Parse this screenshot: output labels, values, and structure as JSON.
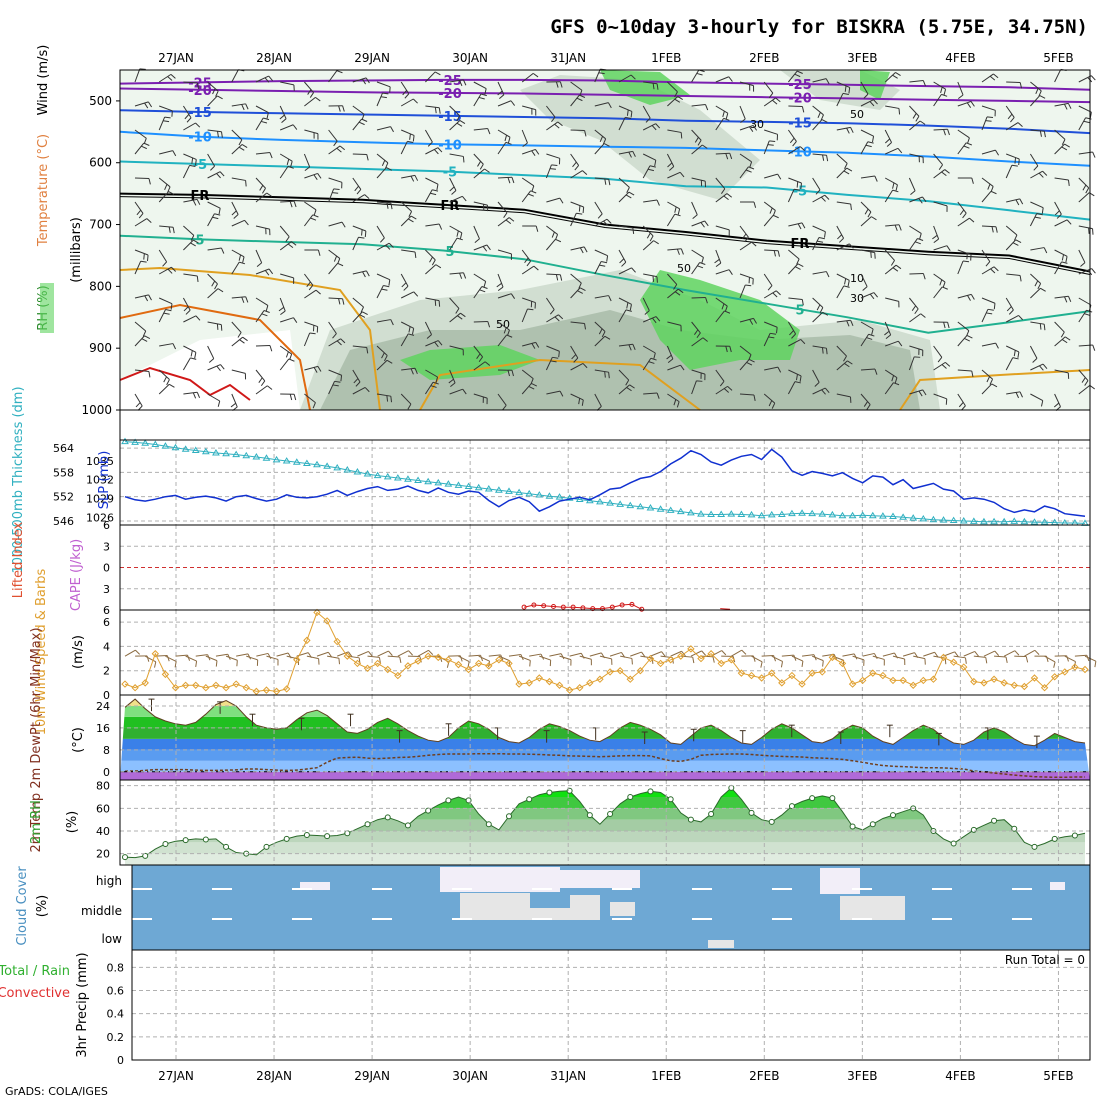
{
  "title": "GFS 0~10day 3-hourly for BISKRA (5.75E, 34.75N)",
  "footer": "GrADS: COLA/IGES",
  "colors": {
    "grid": "#b0b0b0",
    "rh_light": "#e6f2e6",
    "rh_mid": "#cbd9cb",
    "rh_dark": "#a9bca9",
    "rh_green": "#5fd35f",
    "purple": "#7a1fb0",
    "blue": "#1f4fd8",
    "cyan_blue": "#1e90ff",
    "cyan": "#20b2c0",
    "teal": "#20b090",
    "orange": "#e0a020",
    "dark_orange": "#e06a10",
    "red": "#d01818",
    "slp": "#1030d0",
    "thickness": "#30b0c0",
    "wind_speed": "#e0a030",
    "cloud_bg": "#6ea8d4",
    "cloud_white": "#f2eef8",
    "cloud_grey": "#e6e6e6"
  },
  "chart_data": {
    "type": "meteogram",
    "x_axis": {
      "date_labels": [
        "27JAN",
        "28JAN",
        "29JAN",
        "30JAN",
        "31JAN",
        "1FEB",
        "2FEB",
        "3FEB",
        "4FEB",
        "5FEB"
      ],
      "date_day_index": [
        0,
        1,
        2,
        3,
        4,
        5,
        6,
        7,
        8,
        9
      ],
      "range_days": [
        -0.45,
        9.3
      ]
    },
    "upper_air": {
      "ylabel_variables": [
        "RH (%)",
        "Temperature (°C)",
        "Wind (m/s)"
      ],
      "ylabel_unit": "(millibars)",
      "y_ticks": [
        500,
        600,
        700,
        800,
        900,
        1000
      ],
      "ylim": [
        450,
        1000
      ],
      "temperature_contours": [
        {
          "label": "-25",
          "pressure": [
            472,
            470,
            468,
            467,
            466,
            466,
            467,
            470,
            472,
            474,
            476,
            478,
            482
          ]
        },
        {
          "label": "-20",
          "pressure": [
            480,
            482,
            484,
            486,
            487,
            488,
            490,
            492,
            494,
            496,
            498,
            500,
            502
          ]
        },
        {
          "label": "-15",
          "pressure": [
            515,
            518,
            520,
            522,
            524,
            526,
            528,
            532,
            534,
            536,
            540,
            545,
            552
          ]
        },
        {
          "label": "-10",
          "pressure": [
            550,
            558,
            563,
            567,
            570,
            572,
            574,
            576,
            580,
            584,
            590,
            598,
            605
          ]
        },
        {
          "label": "-5",
          "pressure": [
            598,
            602,
            606,
            610,
            614,
            620,
            626,
            638,
            640,
            652,
            662,
            677,
            692
          ]
        },
        {
          "label": "FR",
          "pressure": [
            650,
            652,
            656,
            660,
            668,
            676,
            700,
            712,
            726,
            735,
            744,
            750,
            776
          ]
        },
        {
          "label": "5",
          "pressure": [
            718,
            724,
            728,
            732,
            742,
            756,
            782,
            806,
            828,
            850,
            875,
            858,
            840
          ]
        }
      ],
      "rh_contour_labels": [
        "30",
        "50",
        "50",
        "10",
        "30",
        "50"
      ]
    },
    "slp_thickness": {
      "ylabel_left": "1000-500mb Thickness (dm)",
      "ylabel_right": "SLP (mb)",
      "thickness_ticks": [
        546,
        552,
        558,
        564
      ],
      "slp_ticks": [
        1026,
        1029,
        1032,
        1035
      ],
      "thickness_range": [
        545,
        566
      ],
      "slp_range": [
        1025.6,
        1037.5
      ],
      "slp": [
        1029.3,
        1028.8,
        1028.6,
        1028.9,
        1029.3,
        1029.5,
        1028.9,
        1029.2,
        1029.4,
        1029.1,
        1028.6,
        1029.3,
        1029.5,
        1029.0,
        1028.6,
        1028.9,
        1029.6,
        1029.2,
        1029.1,
        1029.3,
        1029.7,
        1030.3,
        1029.5,
        1030.1,
        1030.6,
        1030.9,
        1030.3,
        1030.5,
        1031.0,
        1030.3,
        1029.9,
        1030.7,
        1030.0,
        1029.7,
        1030.2,
        1030.0,
        1028.7,
        1027.7,
        1028.7,
        1029.2,
        1028.5,
        1027.0,
        1027.7,
        1028.6,
        1028.9,
        1029.2,
        1028.8,
        1029.6,
        1030.5,
        1030.7,
        1031.5,
        1032.2,
        1032.5,
        1033.3,
        1034.5,
        1035.4,
        1036.6,
        1036.0,
        1034.8,
        1034.3,
        1035.1,
        1035.7,
        1036.0,
        1035.2,
        1036.8,
        1035.6,
        1033.4,
        1032.7,
        1033.3,
        1033.0,
        1032.6,
        1033.1,
        1032.2,
        1031.5,
        1032.6,
        1032.4,
        1031.2,
        1032.0,
        1030.6,
        1031.0,
        1031.4,
        1030.5,
        1030.2,
        1028.9,
        1029.1,
        1028.9,
        1028.4,
        1027.4,
        1026.8,
        1027.2,
        1026.9,
        1027.8,
        1027.4,
        1026.6,
        1026.4,
        1026.2
      ],
      "thickness": [
        565.6,
        565.4,
        565.2,
        564.9,
        564.5,
        564.1,
        563.7,
        563.4,
        563.1,
        562.8,
        562.6,
        562.4,
        562.1,
        561.8,
        561.5,
        561.1,
        560.8,
        560.5,
        560.2,
        559.9,
        559.5,
        559.1,
        558.6,
        558.1,
        557.6,
        557.2,
        556.9,
        556.6,
        556.3,
        556.0,
        555.7,
        555.4,
        555.1,
        554.8,
        554.5,
        554.2,
        553.9,
        553.6,
        553.3,
        553.0,
        552.7,
        552.4,
        552.1,
        551.9,
        551.6,
        551.3,
        551.0,
        550.7,
        550.4,
        550.1,
        549.8,
        549.5,
        549.2,
        548.9,
        548.6,
        548.3,
        548.0,
        547.7,
        547.6,
        547.6,
        547.7,
        547.6,
        547.5,
        547.3,
        547.5,
        547.6,
        547.8,
        547.9,
        547.8,
        547.7,
        547.5,
        547.3,
        547.3,
        547.4,
        547.3,
        547.2,
        547.1,
        546.9,
        546.7,
        546.5,
        546.3,
        546.2,
        546.1,
        546.0,
        545.9,
        545.8,
        545.8,
        545.8,
        545.9,
        545.8,
        545.7,
        545.7,
        545.6,
        545.5,
        545.5,
        545.4
      ]
    },
    "stability": {
      "ylabel_left": "Lifted Index",
      "ylabel_right": "CAPE (J/kg)",
      "y_ticks": [
        -6,
        -3,
        0,
        3,
        6
      ],
      "y_tick_labels": [
        "6",
        "3",
        "0",
        "3",
        "6"
      ],
      "ylim": [
        -6,
        6
      ],
      "zero_line": 0,
      "lifted_index_x": [
        3.55,
        3.65,
        3.75,
        3.85,
        3.95,
        4.05,
        4.15,
        4.25,
        4.35,
        4.45,
        4.55,
        4.65,
        4.75
      ],
      "lifted_index_y": [
        5.6,
        5.3,
        5.4,
        5.5,
        5.6,
        5.6,
        5.7,
        5.8,
        5.8,
        5.6,
        5.3,
        5.2,
        5.9
      ],
      "lifted_index_x2": [
        5.55,
        5.65
      ],
      "lifted_index_y2": [
        5.8,
        5.9
      ]
    },
    "wind10m": {
      "ylabel": "10m Wind Speed & Barbs",
      "unit": "(m/s)",
      "y_ticks": [
        0,
        2,
        4,
        6
      ],
      "ylim": [
        0,
        7
      ],
      "speed": [
        0.9,
        0.6,
        1.0,
        3.4,
        1.7,
        0.6,
        0.8,
        0.8,
        0.6,
        0.8,
        0.6,
        0.9,
        0.6,
        0.3,
        0.4,
        0.3,
        0.5,
        2.9,
        4.5,
        6.8,
        6.1,
        4.4,
        3.2,
        2.6,
        2.2,
        2.6,
        2.1,
        1.6,
        2.4,
        2.8,
        3.2,
        3.1,
        2.9,
        2.5,
        2.1,
        2.6,
        2.4,
        2.9,
        2.6,
        0.9,
        1.0,
        1.4,
        1.1,
        0.8,
        0.4,
        0.6,
        1.0,
        1.3,
        1.9,
        2.0,
        1.3,
        2.0,
        3.0,
        2.6,
        2.9,
        3.2,
        3.8,
        3.0,
        3.4,
        2.6,
        2.9,
        1.8,
        1.6,
        1.4,
        1.8,
        1.0,
        1.6,
        0.9,
        1.8,
        1.9,
        3.1,
        2.6,
        0.9,
        1.2,
        1.8,
        1.6,
        1.2,
        1.2,
        0.8,
        1.2,
        1.3,
        3.1,
        2.7,
        2.3,
        1.1,
        1.0,
        1.3,
        1.0,
        0.8,
        0.7,
        1.4,
        0.6,
        1.5,
        1.9,
        2.3,
        2.1
      ]
    },
    "temp2m": {
      "ylabel": "2m Temp 2m DewPt (6hr Min/Max)",
      "unit": "(°C)",
      "y_ticks": [
        0,
        8,
        16,
        24
      ],
      "ylim": [
        -3,
        28
      ],
      "temperature": [
        23.5,
        26.5,
        23.0,
        20.0,
        18.5,
        17.5,
        17.0,
        18.0,
        21.0,
        24.5,
        26.0,
        24.0,
        20.0,
        17.0,
        16.0,
        15.5,
        16.0,
        19.0,
        21.5,
        22.5,
        20.5,
        17.5,
        14.5,
        14.0,
        15.5,
        18.0,
        19.5,
        17.5,
        15.0,
        13.0,
        11.5,
        11.0,
        12.5,
        16.0,
        18.5,
        17.5,
        15.5,
        12.5,
        11.0,
        10.5,
        12.5,
        15.5,
        17.5,
        16.5,
        15.0,
        13.0,
        11.5,
        11.0,
        13.0,
        16.0,
        18.0,
        17.0,
        15.5,
        13.5,
        10.5,
        10.0,
        13.0,
        16.0,
        17.0,
        15.0,
        12.5,
        10.5,
        10.0,
        12.5,
        15.5,
        17.5,
        16.0,
        13.5,
        11.0,
        10.5,
        12.0,
        15.0,
        17.0,
        16.0,
        13.0,
        11.0,
        10.0,
        12.5,
        15.0,
        17.0,
        15.5,
        12.5,
        10.5,
        10.0,
        11.5,
        14.5,
        16.0,
        14.5,
        12.0,
        10.0,
        9.5,
        11.5,
        14.0,
        12.5,
        11.0,
        10.5
      ],
      "dewpoint": [
        0.2,
        0.3,
        0.5,
        0.8,
        0.8,
        0.8,
        0.8,
        0.6,
        0.5,
        0.5,
        0.6,
        0.7,
        1.0,
        1.0,
        0.8,
        0.6,
        0.5,
        0.6,
        1.0,
        1.5,
        3.5,
        5.0,
        5.2,
        5.3,
        5.0,
        4.8,
        5.0,
        5.2,
        5.3,
        5.6,
        6.0,
        6.3,
        6.5,
        6.5,
        6.5,
        6.6,
        6.6,
        6.6,
        6.5,
        6.5,
        6.4,
        6.3,
        6.1,
        6.0,
        5.8,
        5.7,
        5.6,
        5.5,
        5.6,
        5.8,
        5.9,
        5.9,
        5.8,
        4.8,
        4.0,
        3.8,
        4.5,
        6.0,
        6.3,
        6.4,
        6.5,
        6.5,
        6.3,
        6.0,
        5.8,
        5.6,
        5.5,
        5.4,
        5.1,
        5.0,
        4.8,
        4.5,
        4.0,
        3.5,
        2.8,
        2.3,
        2.0,
        1.9,
        1.7,
        1.5,
        1.5,
        1.4,
        1.2,
        1.0,
        0.3,
        0.0,
        -0.5,
        -0.8,
        -1.2,
        -1.5,
        -1.8,
        -1.9,
        -2.0,
        -2.0,
        -1.9,
        -1.9
      ],
      "max_markers_x": [
        -0.25,
        0.45,
        0.78,
        1.28,
        1.78,
        2.28,
        2.78,
        3.28,
        3.78,
        4.28,
        4.78,
        5.28,
        5.78,
        6.28,
        6.78,
        7.28,
        7.78,
        8.28,
        8.78
      ],
      "max_markers_y": [
        26.5,
        25.5,
        21.0,
        19.5,
        21.0,
        15.0,
        17.5,
        16.0,
        15.0,
        16.0,
        14.5,
        15.5,
        15.0,
        17.0,
        14.5,
        17.0,
        14.0,
        16.0,
        13.0
      ]
    },
    "rh2m": {
      "ylabel": "2m RH",
      "unit": "(%)",
      "y_ticks": [
        20,
        40,
        60,
        80
      ],
      "ylim": [
        10,
        85
      ],
      "rh": [
        17.0,
        16.5,
        18.0,
        24.0,
        28.5,
        31.0,
        32.0,
        33.0,
        32.5,
        33.0,
        26.0,
        21.0,
        20.0,
        19.0,
        26.0,
        30.0,
        33.0,
        35.5,
        36.5,
        36.0,
        35.5,
        36.0,
        38.0,
        42.0,
        46.0,
        50.0,
        52.0,
        49.0,
        45.0,
        53.0,
        58.0,
        63.0,
        67.0,
        70.0,
        67.0,
        55.0,
        46.0,
        41.0,
        53.0,
        64.0,
        68.0,
        72.0,
        74.0,
        75.0,
        75.5,
        66.0,
        54.0,
        46.0,
        55.0,
        64.0,
        70.0,
        73.0,
        75.0,
        74.0,
        68.0,
        56.0,
        50.0,
        48.0,
        55.0,
        70.0,
        78.0,
        68.0,
        56.0,
        50.0,
        48.0,
        54.0,
        62.0,
        66.0,
        69.0,
        71.0,
        69.0,
        57.0,
        44.0,
        41.0,
        46.0,
        51.0,
        54.0,
        57.0,
        60.0,
        54.0,
        40.0,
        33.0,
        29.0,
        35.0,
        41.0,
        45.0,
        49.0,
        50.0,
        42.0,
        30.0,
        26.0,
        29.0,
        33.0,
        35.0,
        36.0,
        38.0
      ]
    },
    "cloud_cover": {
      "ylabel": "Cloud Cover",
      "unit": "(%)",
      "levels": [
        "high",
        "middle",
        "low"
      ]
    },
    "precip": {
      "ylabel_left": "Total / Rain",
      "ylabel_left2": "Convective",
      "ylabel_unit": "3hr Precip (mm)",
      "y_ticks": [
        0,
        0.2,
        0.4,
        0.6,
        0.8
      ],
      "y_tick_labels": [
        "0",
        "0.2",
        "0.4",
        "0.6",
        "0.8"
      ],
      "ylim": [
        0,
        0.95
      ],
      "run_total_label": "Run Total = 0"
    }
  }
}
